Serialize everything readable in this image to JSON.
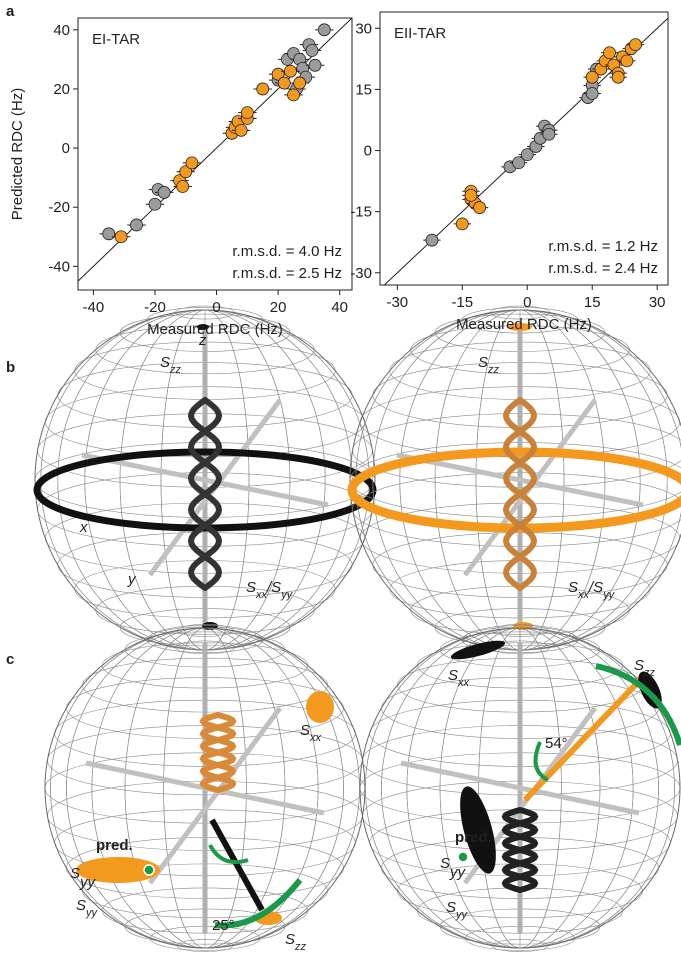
{
  "chart_data": [
    {
      "type": "scatter",
      "title": "EI-TAR",
      "xlabel": "Measured RDC (Hz)",
      "ylabel": "Predicted RDC (Hz)",
      "xlim": [
        -45,
        44
      ],
      "ylim": [
        -48,
        44
      ],
      "xticks": [
        -40,
        -20,
        0,
        20,
        40
      ],
      "yticks": [
        -40,
        -20,
        0,
        20,
        40
      ],
      "annotations": [
        {
          "text": "r.m.s.d. = 4.0 Hz",
          "color": "#231f20"
        },
        {
          "text": "r.m.s.d. = 2.5 Hz",
          "color": "#f39a1e"
        }
      ],
      "series": [
        {
          "color": "#9b9b9b",
          "x": [
            -35,
            -26,
            -20,
            -19,
            -17,
            20,
            23,
            25,
            27,
            28,
            30,
            31,
            35,
            32,
            26,
            29
          ],
          "values": [
            -29,
            -26,
            -19,
            -14,
            -15,
            23,
            30,
            32,
            30,
            27,
            35,
            33,
            40,
            28,
            20,
            24
          ],
          "xerr": [
            3,
            3,
            3,
            3,
            3,
            3,
            3,
            3,
            3,
            3,
            3,
            3,
            3,
            3,
            3,
            3
          ]
        },
        {
          "color": "#f39a1e",
          "x": [
            -31,
            -12,
            -10,
            -8,
            -11,
            5,
            6,
            7,
            8,
            10,
            10,
            15,
            20,
            22,
            24,
            27,
            25
          ],
          "values": [
            -30,
            -11,
            -8,
            -5,
            -13,
            5,
            7,
            9,
            6,
            10,
            12,
            20,
            25,
            22,
            26,
            22,
            18
          ],
          "xerr": [
            3,
            3,
            3,
            3,
            3,
            3,
            3,
            3,
            3,
            3,
            3,
            3,
            3,
            3,
            3,
            3,
            3
          ]
        }
      ]
    },
    {
      "type": "scatter",
      "title": "EII-TAR",
      "xlabel": "Measured RDC (Hz)",
      "xlim": [
        -34,
        32.5
      ],
      "ylim": [
        -33,
        34
      ],
      "xticks": [
        -30,
        -15,
        0,
        15,
        30
      ],
      "yticks": [
        -30,
        -15,
        0,
        15,
        30
      ],
      "annotations": [
        {
          "text": "r.m.s.d. = 1.2 Hz",
          "color": "#231f20"
        },
        {
          "text": "r.m.s.d. = 2.4 Hz",
          "color": "#f39a1e"
        }
      ],
      "series": [
        {
          "color": "#9b9b9b",
          "x": [
            -22,
            -4,
            -2,
            0,
            2,
            3,
            4,
            5,
            5,
            14,
            15,
            15,
            16
          ],
          "values": [
            -22,
            -4,
            -3,
            -1,
            1,
            3,
            6,
            5,
            4,
            13,
            16,
            14,
            20
          ],
          "xerr": [
            2,
            2,
            2,
            2,
            2,
            2,
            2,
            2,
            2,
            2,
            2,
            2,
            2
          ]
        },
        {
          "color": "#f39a1e",
          "x": [
            -15,
            -13,
            -13,
            -12,
            -11,
            -13,
            15,
            17,
            18,
            19,
            20,
            21,
            22,
            23,
            24,
            25,
            21
          ],
          "values": [
            -18,
            -10,
            -12,
            -13,
            -14,
            -11,
            18,
            20,
            22,
            24,
            21,
            19,
            23,
            22,
            25,
            26,
            18
          ],
          "xerr": [
            2,
            2,
            2,
            2,
            2,
            2,
            2,
            2,
            2,
            2,
            2,
            2,
            2,
            2,
            2,
            2,
            2
          ]
        }
      ]
    }
  ],
  "figure": {
    "annotations": [
      {
        "parts": [
          {
            "t": "a"
          }
        ],
        "color": "#000000"
      },
      {
        "parts": [
          {
            "t": "b"
          }
        ],
        "color": "#000000"
      },
      {
        "parts": [
          {
            "t": "c"
          }
        ],
        "color": "#000000"
      },
      {
        "parts": [
          {
            "t": "z"
          }
        ],
        "color": "#000000"
      },
      {
        "parts": [
          {
            "t": "S"
          },
          {
            "t": "zz",
            "sub": true
          }
        ],
        "color": "#000000"
      },
      {
        "parts": [
          {
            "t": "x"
          }
        ],
        "color": "#000000"
      },
      {
        "parts": [
          {
            "t": "y"
          }
        ],
        "color": "#000000"
      },
      {
        "parts": [
          {
            "t": "S"
          },
          {
            "t": "xx",
            "sub": true
          },
          {
            "t": "/S"
          },
          {
            "t": "yy",
            "sub": true
          }
        ],
        "color": "#000000"
      },
      {
        "parts": [
          {
            "t": "S"
          },
          {
            "t": "zz",
            "sub": true
          }
        ],
        "color": "#000000"
      },
      {
        "parts": [
          {
            "t": "S"
          },
          {
            "t": "xx",
            "sub": true
          },
          {
            "t": "/S"
          },
          {
            "t": "yy",
            "sub": true
          }
        ],
        "color": "#000000"
      },
      {
        "parts": [
          {
            "t": "S"
          },
          {
            "t": "xx",
            "sub": true
          }
        ],
        "color": "#000000"
      },
      {
        "parts": [
          {
            "t": "pred."
          }
        ],
        "color": "#1a9a48"
      },
      {
        "parts": [
          {
            "t": "S"
          },
          {
            "t": "yy",
            "sub": true
          }
        ],
        "color": "#1a9a48"
      },
      {
        "parts": [
          {
            "t": "S"
          },
          {
            "t": "yy",
            "sub": true
          }
        ],
        "color": "#000000"
      },
      {
        "parts": [
          {
            "t": "25°"
          }
        ],
        "color": "#000000"
      },
      {
        "parts": [
          {
            "t": "S"
          },
          {
            "t": "zz",
            "sub": true
          }
        ],
        "color": "#000000"
      },
      {
        "parts": [
          {
            "t": "S"
          },
          {
            "t": "xx",
            "sub": true
          }
        ],
        "color": "#000000"
      },
      {
        "parts": [
          {
            "t": "S"
          },
          {
            "t": "zz",
            "sub": true
          }
        ],
        "color": "#000000"
      },
      {
        "parts": [
          {
            "t": "54°"
          }
        ],
        "color": "#000000"
      },
      {
        "parts": [
          {
            "t": "pred."
          }
        ],
        "color": "#1a9a48"
      },
      {
        "parts": [
          {
            "t": "S"
          },
          {
            "t": "yy",
            "sub": true
          }
        ],
        "color": "#1a9a48"
      },
      {
        "parts": [
          {
            "t": "S"
          },
          {
            "t": "yy",
            "sub": true
          }
        ],
        "color": "#000000"
      }
    ]
  }
}
